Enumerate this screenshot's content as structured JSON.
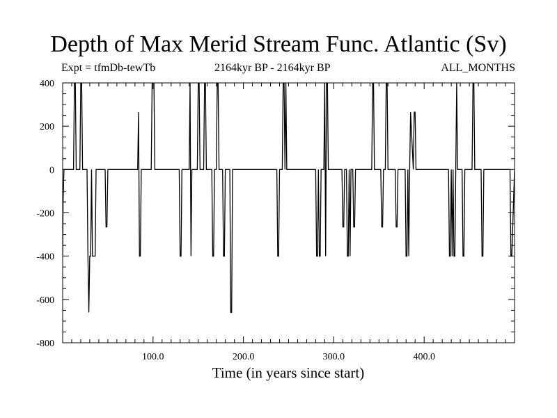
{
  "chart_data": {
    "type": "line",
    "title": "Depth of Max Merid Stream Func. Atlantic (Sv)",
    "subtitle_left": "Expt = tfmDb-tewTb",
    "subtitle_center": "2164kyr BP - 2164kyr BP",
    "subtitle_right": "ALL_MONTHS",
    "xlabel": "Time (in years since start)",
    "ylabel": "",
    "xlim": [
      0,
      500
    ],
    "ylim": [
      -800,
      400
    ],
    "x_ticks": [
      100,
      200,
      300,
      400
    ],
    "x_tick_labels": [
      "100.0",
      "200.0",
      "300.0",
      "400.0"
    ],
    "y_ticks": [
      400,
      200,
      0,
      -200,
      -400,
      -600,
      -800
    ],
    "y_tick_labels": [
      "400",
      "200",
      "0",
      "-200",
      "-400",
      "-600",
      "-800"
    ],
    "grid": false,
    "line_color": "#000000",
    "series": [
      {
        "x": [
          0,
          0.5,
          1.5,
          3,
          12,
          13,
          14,
          15,
          19,
          20,
          21,
          22,
          27,
          28,
          29,
          30,
          31,
          32,
          33,
          36,
          37,
          38,
          47,
          48,
          49,
          50,
          83,
          84,
          85,
          86,
          87,
          88,
          98,
          99,
          100,
          101,
          102,
          103,
          129,
          130,
          131,
          132,
          140,
          141,
          142,
          143,
          149,
          150,
          151,
          152,
          156,
          157,
          158,
          159,
          165,
          166,
          167,
          168,
          170,
          171,
          172,
          173,
          177,
          178,
          179,
          180,
          185,
          186,
          187,
          188,
          237,
          238,
          239,
          240,
          243,
          244,
          245,
          246,
          247,
          248,
          280,
          281,
          282,
          283,
          284,
          285,
          286,
          287,
          289,
          290,
          291,
          292,
          293,
          294,
          295,
          309,
          310,
          311,
          312,
          314,
          315,
          316,
          317,
          318,
          319,
          321,
          322,
          323,
          324,
          342,
          343,
          344,
          345,
          352,
          353,
          354,
          355,
          357,
          358,
          359,
          360,
          368,
          369,
          370,
          371,
          379,
          380,
          381,
          382,
          383,
          384,
          385,
          388,
          389,
          390,
          391,
          427,
          428,
          429,
          430,
          431,
          432,
          433,
          434,
          435,
          436,
          437,
          442,
          443,
          444,
          445,
          453,
          454,
          455,
          456,
          463,
          464,
          465,
          466,
          495,
          496,
          497,
          500
        ],
        "y": [
          -400,
          -150,
          0,
          0,
          0,
          400,
          400,
          0,
          0,
          400,
          400,
          0,
          0,
          -400,
          -660,
          -400,
          -400,
          0,
          -400,
          -400,
          0,
          0,
          0,
          -265,
          -265,
          0,
          0,
          265,
          -400,
          -400,
          0,
          0,
          0,
          400,
          400,
          400,
          0,
          0,
          0,
          -400,
          -400,
          0,
          0,
          400,
          -400,
          0,
          0,
          400,
          400,
          0,
          0,
          400,
          400,
          0,
          0,
          -400,
          -400,
          0,
          0,
          400,
          400,
          0,
          0,
          -400,
          -400,
          0,
          0,
          -660,
          -660,
          0,
          0,
          -400,
          -400,
          0,
          0,
          400,
          400,
          0,
          400,
          0,
          0,
          -400,
          -400,
          0,
          -400,
          -400,
          0,
          0,
          0,
          400,
          -400,
          400,
          400,
          0,
          0,
          0,
          -265,
          -265,
          0,
          0,
          -400,
          -400,
          0,
          -400,
          0,
          0,
          -265,
          -265,
          0,
          0,
          400,
          400,
          0,
          0,
          -265,
          -265,
          0,
          0,
          400,
          400,
          0,
          0,
          -265,
          -265,
          0,
          0,
          -400,
          -400,
          0,
          -400,
          0,
          265,
          0,
          265,
          265,
          0,
          0,
          -400,
          -400,
          0,
          -400,
          0,
          -400,
          -400,
          0,
          400,
          0,
          0,
          -400,
          -400,
          0,
          0,
          400,
          400,
          0,
          0,
          -400,
          -400,
          0,
          0,
          -400,
          -400,
          0
        ]
      }
    ]
  }
}
